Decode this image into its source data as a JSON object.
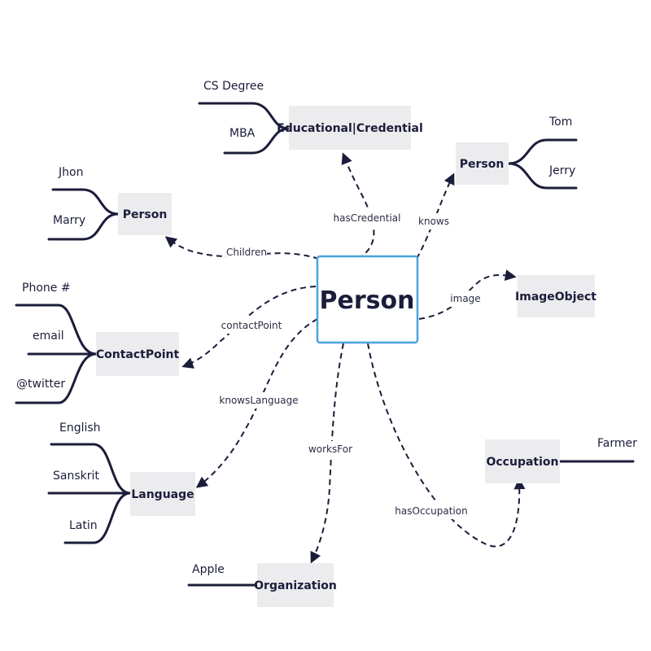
{
  "center": {
    "label": "Person"
  },
  "nodes": {
    "educational_credential": {
      "label": "Educational|Credential",
      "leaves": [
        "CS Degree",
        "MBA"
      ]
    },
    "person_knows": {
      "label": "Person",
      "leaves": [
        "Tom",
        "Jerry"
      ]
    },
    "person_children": {
      "label": "Person",
      "leaves": [
        "Jhon",
        "Marry"
      ]
    },
    "image_object": {
      "label": "ImageObject"
    },
    "contact_point": {
      "label": "ContactPoint",
      "leaves": [
        "Phone #",
        "email",
        "@twitter"
      ]
    },
    "language": {
      "label": "Language",
      "leaves": [
        "English",
        "Sanskrit",
        "Latin"
      ]
    },
    "organization": {
      "label": "Organization",
      "leaves": [
        "Apple"
      ]
    },
    "occupation": {
      "label": "Occupation",
      "leaves": [
        "Farmer"
      ]
    }
  },
  "edges": {
    "has_credential": "hasCredential",
    "knows": "knows",
    "children": "Children",
    "image": "image",
    "contact_point": "contactPoint",
    "knows_language": "knowsLanguage",
    "works_for": "worksFor",
    "has_occupation": "hasOccupation"
  }
}
